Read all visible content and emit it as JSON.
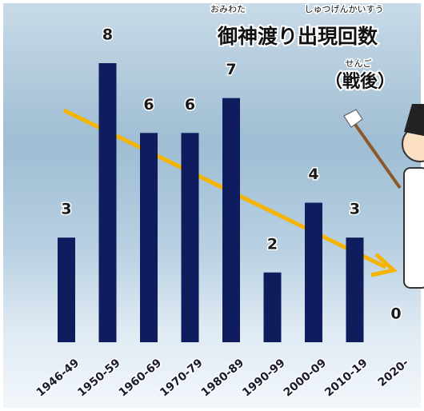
{
  "chart_data": {
    "type": "bar",
    "title": "御神渡り出現回数",
    "title_ruby": [
      "おみわた",
      "しゅつげんかいすう"
    ],
    "subtitle": "（戦後）",
    "subtitle_ruby": "せんご",
    "categories": [
      "1946-49",
      "1950-59",
      "1960-69",
      "1970-79",
      "1980-89",
      "1990-99",
      "2000-09",
      "2010-19",
      "2020-"
    ],
    "values": [
      3,
      8,
      6,
      6,
      7,
      2,
      4,
      3,
      0
    ],
    "color": "#0f1d5e"
  }
}
